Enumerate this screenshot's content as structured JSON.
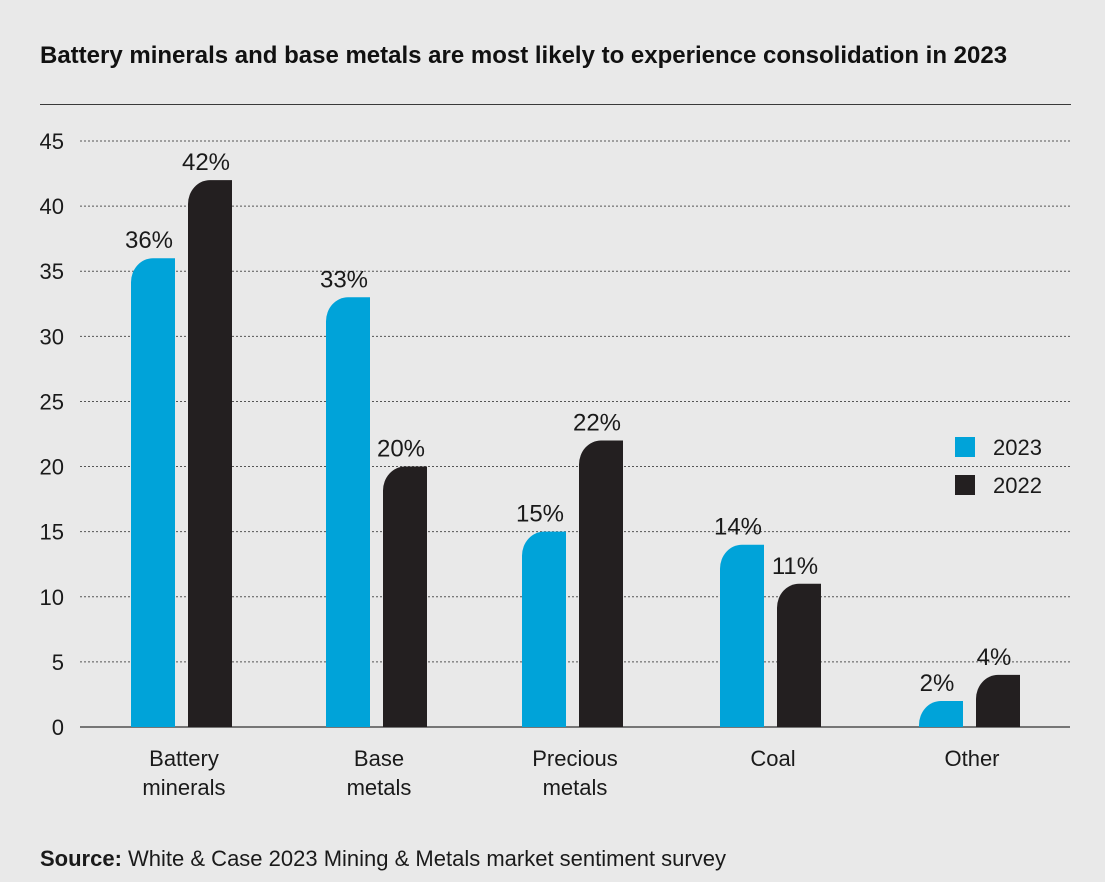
{
  "title": "Battery minerals and base metals are most likely to experience consolidation in 2023",
  "source": {
    "label": "Source:",
    "text": "White & Case 2023 Mining & Metals market sentiment survey"
  },
  "colors": {
    "2023": "#00a3d9",
    "2022": "#231f20"
  },
  "chart_data": {
    "type": "bar",
    "title": "Battery minerals and base metals are most likely to experience consolidation in 2023",
    "categories": [
      [
        "Battery",
        "minerals"
      ],
      [
        "Base",
        "metals"
      ],
      [
        "Precious",
        "metals"
      ],
      [
        "Coal"
      ],
      [
        "Other"
      ]
    ],
    "series": [
      {
        "name": "2023",
        "values": [
          36,
          33,
          15,
          14,
          2
        ],
        "labels": [
          "36%",
          "33%",
          "15%",
          "14%",
          "2%"
        ]
      },
      {
        "name": "2022",
        "values": [
          42,
          20,
          22,
          11,
          4
        ],
        "labels": [
          "42%",
          "20%",
          "22%",
          "11%",
          "4%"
        ]
      }
    ],
    "ylim": [
      0,
      45
    ],
    "yticks": [
      0,
      5,
      10,
      15,
      20,
      25,
      30,
      35,
      40,
      45
    ],
    "grid": true,
    "legend_position": "right"
  }
}
